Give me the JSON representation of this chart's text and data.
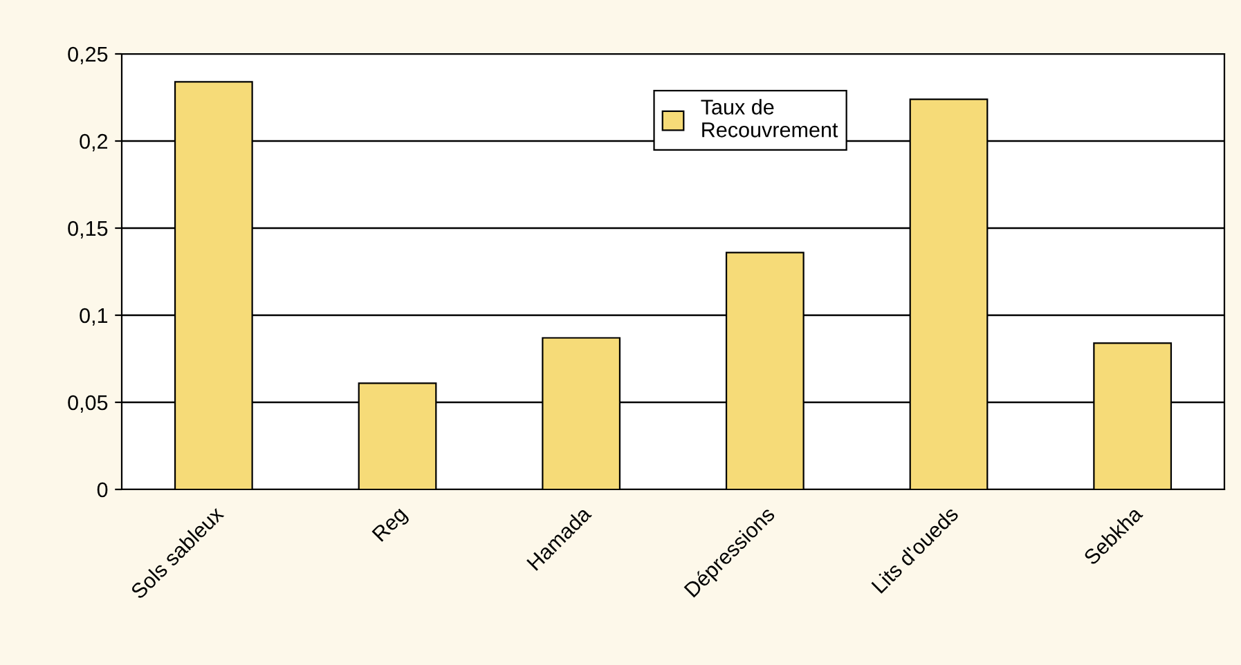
{
  "chart_data": {
    "type": "bar",
    "categories": [
      "Sols sableux",
      "Reg",
      "Hamada",
      "Dépressions",
      "Lits d'oueds",
      "Sebkha"
    ],
    "series": [
      {
        "name": "Taux de\nRecouvrement",
        "color": "#f6db78",
        "values": [
          0.234,
          0.061,
          0.087,
          0.136,
          0.224,
          0.084
        ]
      }
    ],
    "ylim": [
      0,
      0.25
    ],
    "yticks": [
      {
        "value": 0,
        "label": "0"
      },
      {
        "value": 0.05,
        "label": "0,05"
      },
      {
        "value": 0.1,
        "label": "0,1"
      },
      {
        "value": 0.15,
        "label": "0,15"
      },
      {
        "value": 0.2,
        "label": "0,2"
      },
      {
        "value": 0.25,
        "label": "0,25"
      }
    ],
    "grid": "y",
    "legend": "top"
  }
}
